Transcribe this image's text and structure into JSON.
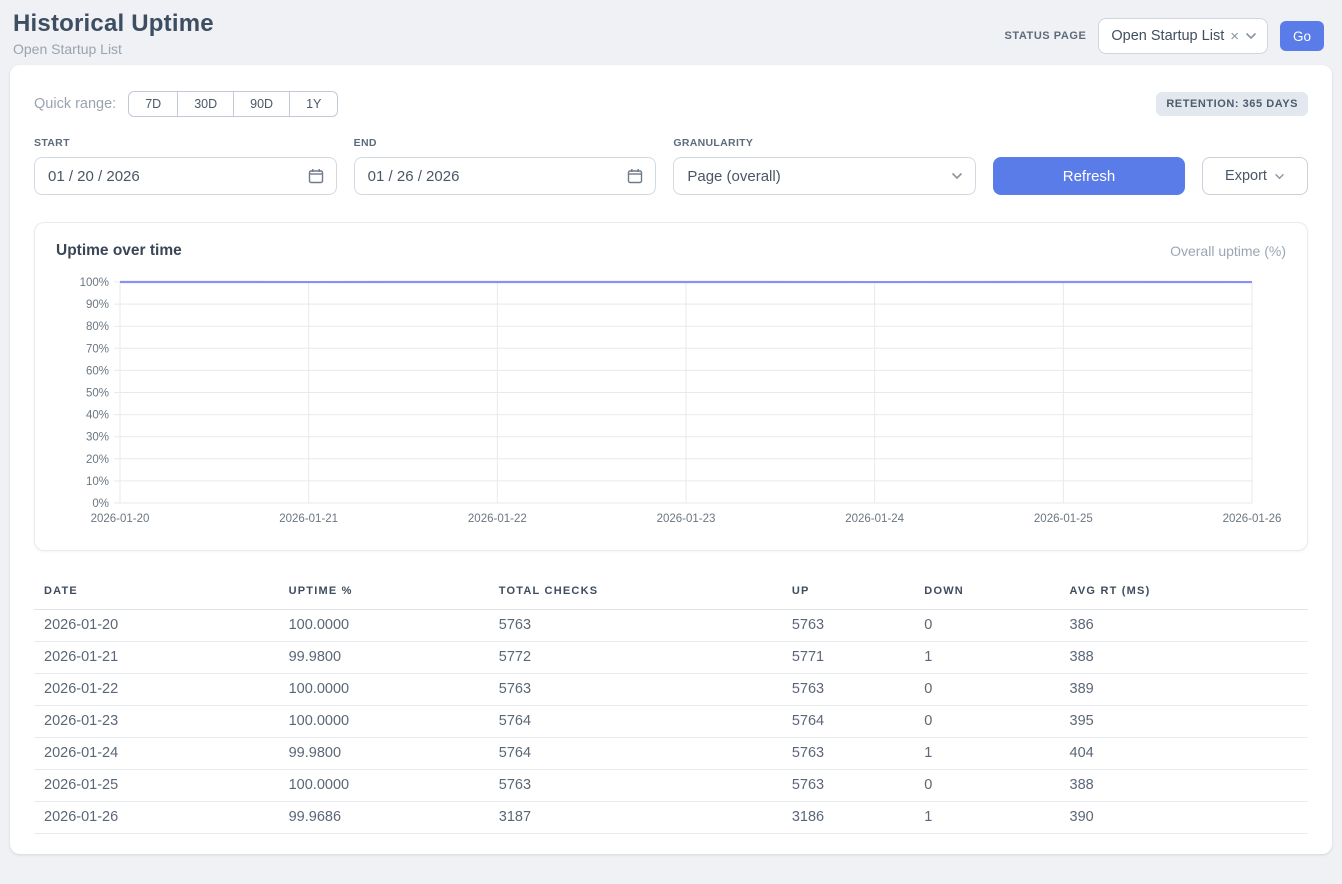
{
  "header": {
    "title": "Historical Uptime",
    "subtitle": "Open Startup List",
    "status_page_label": "STATUS PAGE",
    "status_page_value": "Open Startup List",
    "go_label": "Go"
  },
  "controls": {
    "quick_range_label": "Quick range:",
    "quick_ranges": [
      "7D",
      "30D",
      "90D",
      "1Y"
    ],
    "retention_badge": "RETENTION: 365 DAYS",
    "start_label": "START",
    "start_value": "01 / 20 / 2026",
    "end_label": "END",
    "end_value": "01 / 26 / 2026",
    "granularity_label": "GRANULARITY",
    "granularity_value": "Page (overall)",
    "refresh_label": "Refresh",
    "export_label": "Export"
  },
  "chart": {
    "title": "Uptime over time",
    "legend": "Overall uptime (%)"
  },
  "chart_data": {
    "type": "line",
    "title": "Uptime over time",
    "x": [
      "2026-01-20",
      "2026-01-21",
      "2026-01-22",
      "2026-01-23",
      "2026-01-24",
      "2026-01-25",
      "2026-01-26"
    ],
    "series": [
      {
        "name": "Overall uptime (%)",
        "values": [
          100.0,
          99.98,
          100.0,
          100.0,
          99.98,
          100.0,
          99.9686
        ]
      }
    ],
    "xlabel": "",
    "ylabel": "",
    "ylim": [
      0,
      100
    ],
    "yticks": [
      0,
      10,
      20,
      30,
      40,
      50,
      60,
      70,
      80,
      90,
      100
    ],
    "ytick_suffix": "%",
    "grid": true,
    "legend_position": "top-right",
    "line_color": "#8a8ff2",
    "grid_color": "#e7e9ec",
    "tick_label_color": "#6b7680"
  },
  "table": {
    "columns": [
      "DATE",
      "UPTIME %",
      "TOTAL CHECKS",
      "UP",
      "DOWN",
      "AVG RT (MS)"
    ],
    "rows": [
      [
        "2026-01-20",
        "100.0000",
        "5763",
        "5763",
        "0",
        "386"
      ],
      [
        "2026-01-21",
        "99.9800",
        "5772",
        "5771",
        "1",
        "388"
      ],
      [
        "2026-01-22",
        "100.0000",
        "5763",
        "5763",
        "0",
        "389"
      ],
      [
        "2026-01-23",
        "100.0000",
        "5764",
        "5764",
        "0",
        "395"
      ],
      [
        "2026-01-24",
        "99.9800",
        "5764",
        "5763",
        "1",
        "404"
      ],
      [
        "2026-01-25",
        "100.0000",
        "5763",
        "5763",
        "0",
        "388"
      ],
      [
        "2026-01-26",
        "99.9686",
        "3187",
        "3186",
        "1",
        "390"
      ]
    ]
  },
  "colors": {
    "accent": "#5a7ce8",
    "line": "#8a8ff2"
  }
}
